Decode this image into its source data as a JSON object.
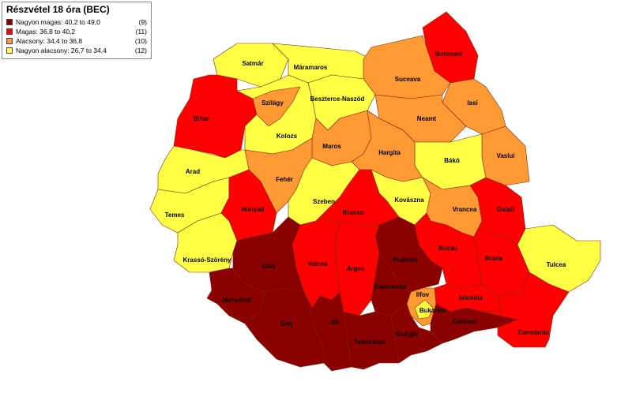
{
  "legend": {
    "title": "Részvétel 18 óra (BEC)",
    "classes": [
      {
        "label": "Nagyon magas: 40,2 to 49,0",
        "count": "(9)",
        "color": "#8b0000"
      },
      {
        "label": "Magas: 36,8 to 40,2",
        "count": "(11)",
        "color": "#ff0000"
      },
      {
        "label": "Alacsony: 34,4 to 36,8",
        "count": "(10)",
        "color": "#ff9933"
      },
      {
        "label": "Nagyon alacsony: 26,7 to 34,4",
        "count": "(12)",
        "color": "#ffff44"
      }
    ]
  },
  "counties": [
    {
      "name": "Satmár",
      "class": 3
    },
    {
      "name": "Máramaros",
      "class": 3
    },
    {
      "name": "Botosani",
      "class": 1
    },
    {
      "name": "Suceava",
      "class": 2
    },
    {
      "name": "Iasi",
      "class": 2
    },
    {
      "name": "Neamt",
      "class": 2
    },
    {
      "name": "Vaslui",
      "class": 2
    },
    {
      "name": "Bákó",
      "class": 3
    },
    {
      "name": "Beszterce-Naszód",
      "class": 3
    },
    {
      "name": "Bihar",
      "class": 1
    },
    {
      "name": "Kolozs",
      "class": 3
    },
    {
      "name": "Szilágy",
      "class": 2
    },
    {
      "name": "Maros",
      "class": 2
    },
    {
      "name": "Hargita",
      "class": 2
    },
    {
      "name": "Fehér",
      "class": 2
    },
    {
      "name": "Arad",
      "class": 3
    },
    {
      "name": "Temes",
      "class": 3
    },
    {
      "name": "Hunyad",
      "class": 1
    },
    {
      "name": "Krassó-Szörény",
      "class": 3
    },
    {
      "name": "Szeben",
      "class": 3
    },
    {
      "name": "Kovászna",
      "class": 3
    },
    {
      "name": "Brasso",
      "class": 1
    },
    {
      "name": "Vrancea",
      "class": 2
    },
    {
      "name": "Galati",
      "class": 1
    },
    {
      "name": "Tulcea",
      "class": 3
    },
    {
      "name": "Braila",
      "class": 1
    },
    {
      "name": "Buzau",
      "class": 1
    },
    {
      "name": "Prahova",
      "class": 0
    },
    {
      "name": "Arges",
      "class": 1
    },
    {
      "name": "Valcea",
      "class": 1
    },
    {
      "name": "Dambovita",
      "class": 0
    },
    {
      "name": "Gorj",
      "class": 0
    },
    {
      "name": "Mehedinti",
      "class": 0
    },
    {
      "name": "Dolj",
      "class": 0
    },
    {
      "name": "Olt",
      "class": 0
    },
    {
      "name": "Teleorman",
      "class": 0
    },
    {
      "name": "Giurgiu",
      "class": 0
    },
    {
      "name": "Ilfov",
      "class": 2
    },
    {
      "name": "Bukarest",
      "class": 3
    },
    {
      "name": "Ialomita",
      "class": 1
    },
    {
      "name": "Calarasi",
      "class": 0
    },
    {
      "name": "Constanta",
      "class": 1
    }
  ]
}
